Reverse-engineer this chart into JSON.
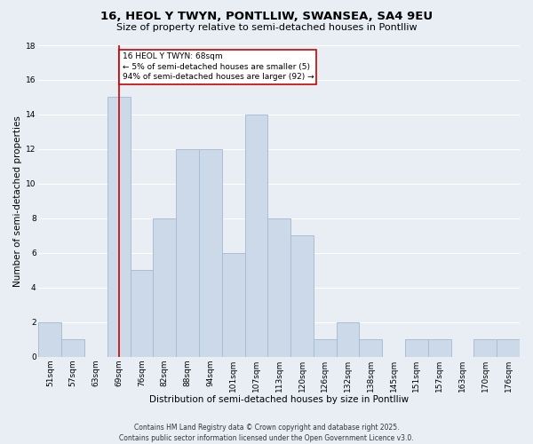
{
  "title": "16, HEOL Y TWYN, PONTLLIW, SWANSEA, SA4 9EU",
  "subtitle": "Size of property relative to semi-detached houses in Pontlliw",
  "xlabel": "Distribution of semi-detached houses by size in Pontlliw",
  "ylabel": "Number of semi-detached properties",
  "footer": "Contains HM Land Registry data © Crown copyright and database right 2025.\nContains public sector information licensed under the Open Government Licence v3.0.",
  "categories": [
    "51sqm",
    "57sqm",
    "63sqm",
    "69sqm",
    "76sqm",
    "82sqm",
    "88sqm",
    "94sqm",
    "101sqm",
    "107sqm",
    "113sqm",
    "120sqm",
    "126sqm",
    "132sqm",
    "138sqm",
    "145sqm",
    "151sqm",
    "157sqm",
    "163sqm",
    "170sqm",
    "176sqm"
  ],
  "values": [
    2,
    1,
    0,
    15,
    5,
    8,
    12,
    12,
    6,
    14,
    8,
    7,
    1,
    2,
    1,
    0,
    1,
    1,
    0,
    1,
    1
  ],
  "bar_color": "#ccd9e8",
  "bar_edge_color": "#aabdd4",
  "red_line_index": 3,
  "annotation_text": "16 HEOL Y TWYN: 68sqm\n← 5% of semi-detached houses are smaller (5)\n94% of semi-detached houses are larger (92) →",
  "annotation_box_color": "#ffffff",
  "annotation_box_edge_color": "#cc0000",
  "red_line_color": "#cc0000",
  "ylim": [
    0,
    18
  ],
  "yticks": [
    0,
    2,
    4,
    6,
    8,
    10,
    12,
    14,
    16,
    18
  ],
  "background_color": "#e8eef4",
  "grid_color": "#ffffff",
  "title_fontsize": 9.5,
  "subtitle_fontsize": 8,
  "axis_label_fontsize": 7.5,
  "tick_fontsize": 6.5,
  "annotation_fontsize": 6.5,
  "footer_fontsize": 5.5
}
